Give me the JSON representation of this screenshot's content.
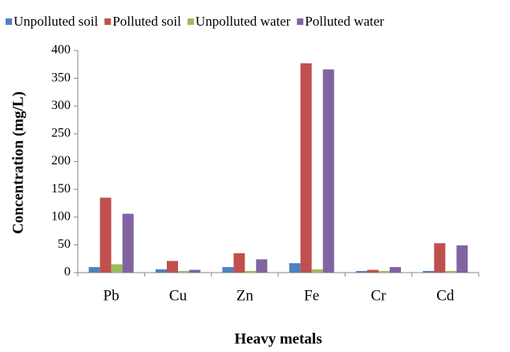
{
  "chart_data": {
    "type": "bar",
    "x_label": "Heavy metals",
    "y_label": "Concentration  (mg/L)",
    "categories": [
      "Pb",
      "Cu",
      "Zn",
      "Fe",
      "Cr",
      "Cd"
    ],
    "series": [
      {
        "name": "Unpolluted soil",
        "color": "#4f81bd",
        "values": [
          10,
          6,
          10,
          17,
          3,
          3
        ]
      },
      {
        "name": "Polluted soil",
        "color": "#c0504d",
        "values": [
          135,
          21,
          35,
          377,
          5,
          53
        ]
      },
      {
        "name": "Unpolluted water",
        "color": "#9bbb59",
        "values": [
          15,
          3,
          3,
          6,
          3,
          3
        ]
      },
      {
        "name": "Polluted water",
        "color": "#8064a2",
        "values": [
          106,
          5,
          24,
          366,
          10,
          49
        ]
      }
    ],
    "ylim": [
      0,
      400
    ],
    "yticks": [
      0,
      50,
      100,
      150,
      200,
      250,
      300,
      350,
      400
    ],
    "grid": false,
    "legend": "top"
  }
}
